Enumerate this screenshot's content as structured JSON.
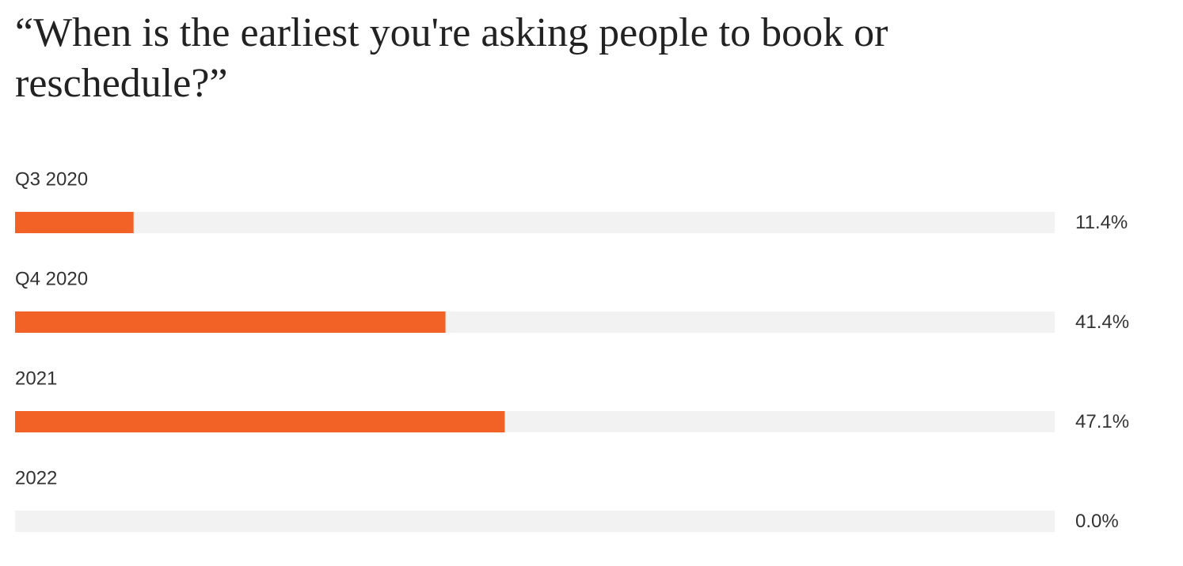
{
  "chart_data": {
    "type": "bar",
    "orientation": "horizontal",
    "title": "“When is the earliest you're asking people to book or reschedule?”",
    "categories": [
      "Q3 2020",
      "Q4 2020",
      "2021",
      "2022"
    ],
    "values": [
      11.4,
      41.4,
      47.1,
      0.0
    ],
    "value_labels": [
      "11.4%",
      "41.4%",
      "47.1%",
      "0.0%"
    ],
    "color": "#f26125",
    "track_color": "#f2f2f2",
    "xlim": [
      0,
      100
    ]
  }
}
